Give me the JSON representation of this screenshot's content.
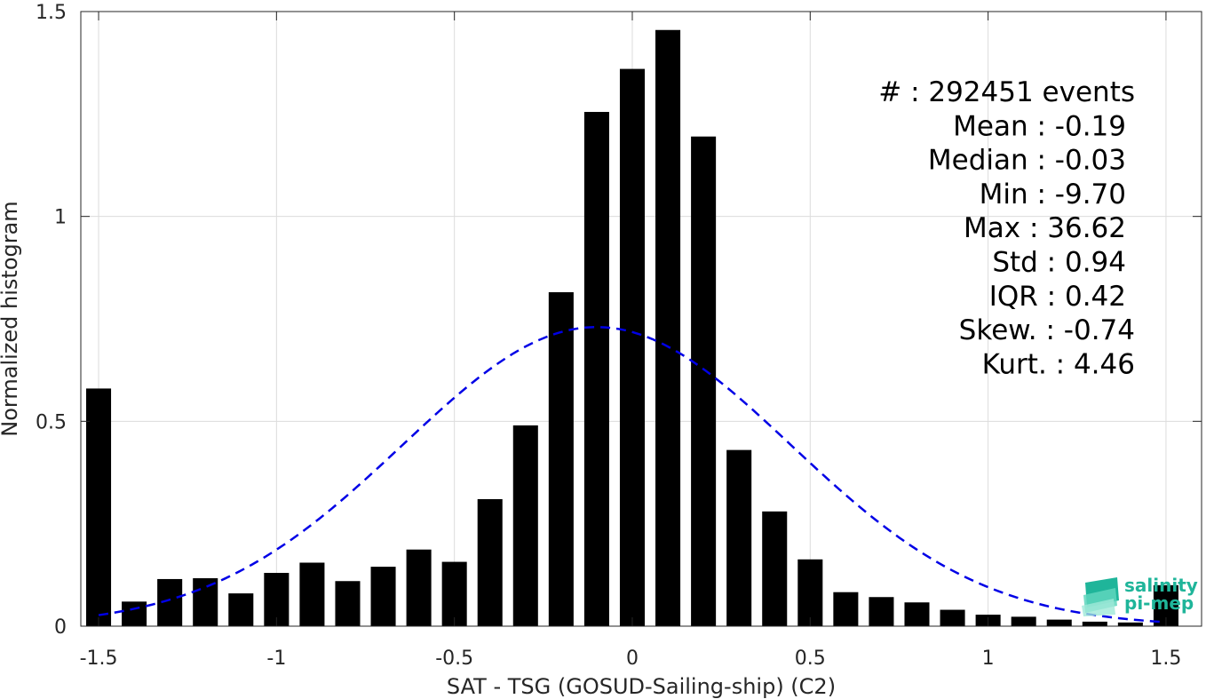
{
  "chart_data": {
    "type": "bar",
    "title": "",
    "xlabel": "SAT - TSG (GOSUD-Sailing-ship) (C2)",
    "ylabel": "Normalized histogram",
    "xlim": [
      -1.55,
      1.6
    ],
    "ylim": [
      0,
      1.5
    ],
    "xticks": [
      -1.5,
      -1,
      -0.5,
      0,
      0.5,
      1,
      1.5
    ],
    "xtick_labels": [
      "-1.5",
      "-1",
      "-0.5",
      "0",
      "0.5",
      "1",
      "1.5"
    ],
    "yticks": [
      0,
      0.5,
      1,
      1.5
    ],
    "ytick_labels": [
      "0",
      "0.5",
      "1",
      "1.5"
    ],
    "grid": true,
    "bar_width": 0.07,
    "bar_color": "#000000",
    "bins": [
      {
        "x": -1.5,
        "value": 0.58
      },
      {
        "x": -1.4,
        "value": 0.06
      },
      {
        "x": -1.3,
        "value": 0.115
      },
      {
        "x": -1.2,
        "value": 0.117
      },
      {
        "x": -1.1,
        "value": 0.08
      },
      {
        "x": -1.0,
        "value": 0.13
      },
      {
        "x": -0.9,
        "value": 0.155
      },
      {
        "x": -0.8,
        "value": 0.11
      },
      {
        "x": -0.7,
        "value": 0.145
      },
      {
        "x": -0.6,
        "value": 0.187
      },
      {
        "x": -0.5,
        "value": 0.157
      },
      {
        "x": -0.4,
        "value": 0.31
      },
      {
        "x": -0.3,
        "value": 0.49
      },
      {
        "x": -0.2,
        "value": 0.815
      },
      {
        "x": -0.1,
        "value": 1.255
      },
      {
        "x": 0.0,
        "value": 1.36
      },
      {
        "x": 0.1,
        "value": 1.455
      },
      {
        "x": 0.2,
        "value": 1.195
      },
      {
        "x": 0.3,
        "value": 0.43
      },
      {
        "x": 0.4,
        "value": 0.28
      },
      {
        "x": 0.5,
        "value": 0.163
      },
      {
        "x": 0.6,
        "value": 0.083
      },
      {
        "x": 0.7,
        "value": 0.071
      },
      {
        "x": 0.8,
        "value": 0.058
      },
      {
        "x": 0.9,
        "value": 0.04
      },
      {
        "x": 1.0,
        "value": 0.028
      },
      {
        "x": 1.1,
        "value": 0.023
      },
      {
        "x": 1.2,
        "value": 0.016
      },
      {
        "x": 1.3,
        "value": 0.011
      },
      {
        "x": 1.4,
        "value": 0.009
      },
      {
        "x": 1.5,
        "value": 0.1
      }
    ],
    "fit_curve": {
      "type": "gaussian",
      "style": "dashed",
      "color": "#0000e6",
      "mean": -0.1,
      "std": 0.545,
      "peak": 0.73,
      "x_range": [
        -1.5,
        1.5
      ]
    },
    "stats": [
      {
        "label": "#  ",
        "value": ": 292451 events"
      },
      {
        "label": "Mean",
        "value": ": -0.19"
      },
      {
        "label": "Median",
        "value": ": -0.03"
      },
      {
        "label": "Min",
        "value": ": -9.70"
      },
      {
        "label": "Max",
        "value": ": 36.62"
      },
      {
        "label": "Std",
        "value": ": 0.94"
      },
      {
        "label": "IQR",
        "value": ": 0.42"
      },
      {
        "label": "Skew.",
        "value": ": -0.74"
      },
      {
        "label": "Kurt.",
        "value": ": 4.46"
      }
    ]
  },
  "logo": {
    "line1": "salinity",
    "line2": "pi-mep",
    "color": "#1fb59a"
  }
}
